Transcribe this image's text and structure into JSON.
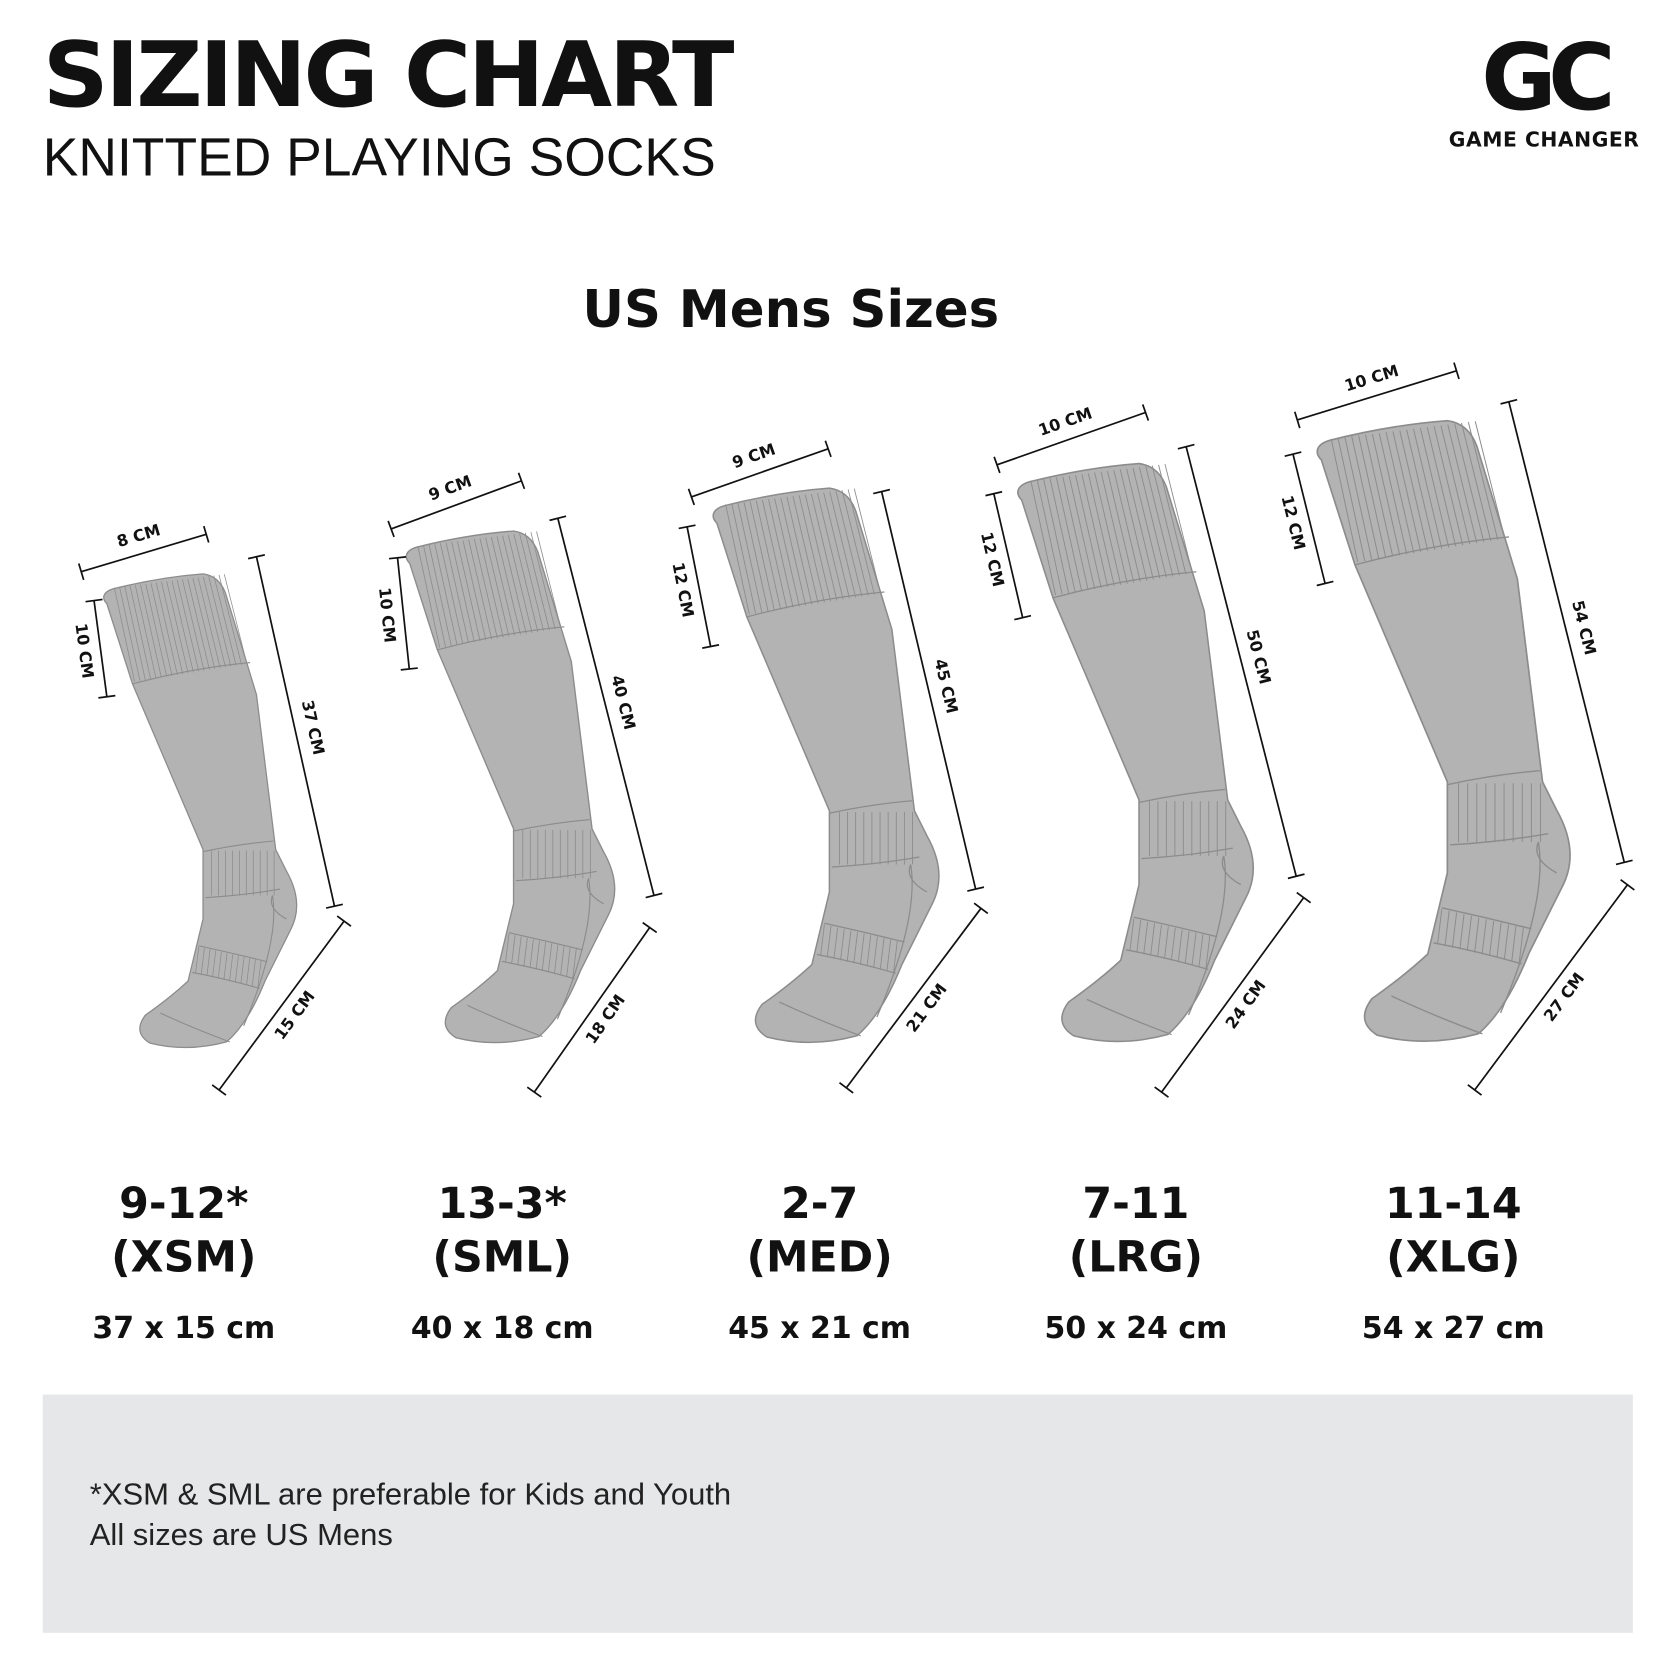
{
  "header": {
    "title": "SIZING CHART",
    "subtitle": "KNITTED PLAYING SOCKS"
  },
  "logo": {
    "mark": "GC",
    "text": "GAME CHANGER"
  },
  "section_title": "US Mens Sizes",
  "colors": {
    "sock_fill": "#b3b3b3",
    "sock_stroke": "#8c8c8c",
    "footer_bg": "#e6e7e8"
  },
  "sizes": [
    {
      "range": "9-12*",
      "code": "(XSM)",
      "dims": "37 x 15 cm",
      "width": "8 CM",
      "cuff": "10 CM",
      "length": "37 CM",
      "foot": "15 CM"
    },
    {
      "range": "13-3*",
      "code": "(SML)",
      "dims": "40 x 18 cm",
      "width": "9 CM",
      "cuff": "10 CM",
      "length": "40 CM",
      "foot": "18 CM"
    },
    {
      "range": "2-7",
      "code": "(MED)",
      "dims": "45 x 21 cm",
      "width": "9 CM",
      "cuff": "12 CM",
      "length": "45 CM",
      "foot": "21 CM"
    },
    {
      "range": "7-11",
      "code": "(LRG)",
      "dims": "50 x 24 cm",
      "width": "10 CM",
      "cuff": "12 CM",
      "length": "50 CM",
      "foot": "24 CM"
    },
    {
      "range": "11-14",
      "code": "(XLG)",
      "dims": "54 x 27 cm",
      "width": "10 CM",
      "cuff": "12 CM",
      "length": "54 CM",
      "foot": "27 CM"
    }
  ],
  "notes": [
    "*XSM & SML are preferable for Kids and Youth",
    "All sizes are US Mens"
  ]
}
